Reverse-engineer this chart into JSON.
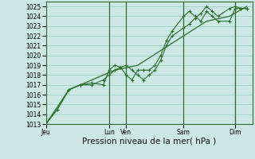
{
  "background_color": "#cce8e4",
  "grid_color": "#99ccbb",
  "line_color": "#2d6e2d",
  "ylim": [
    1013,
    1025.5
  ],
  "ytick_min": 1013,
  "ytick_max": 1025,
  "xlabel": "Pression niveau de la mer( hPa )",
  "xlabel_fontsize": 7.5,
  "tick_fontsize": 5.5,
  "day_labels": [
    "Jeu",
    "Lun",
    "Ven",
    "Sam",
    "Dim"
  ],
  "day_positions": [
    0,
    5.5,
    7.0,
    12.0,
    16.5
  ],
  "vline_positions": [
    5.5,
    7.0,
    12.0,
    16.5
  ],
  "xlim": [
    0,
    18
  ],
  "series1_x": [
    0,
    1,
    2,
    3,
    4,
    5,
    5.5,
    6,
    6.5,
    7,
    7.5,
    8,
    8.5,
    9,
    9.5,
    10,
    10.5,
    11,
    12,
    12.5,
    13,
    13.5,
    14,
    14.5,
    15,
    16,
    16.5,
    17,
    17.5
  ],
  "series1_y": [
    1013,
    1014.5,
    1016.5,
    1017,
    1017,
    1017.5,
    1018,
    1018.5,
    1018.8,
    1019,
    1018.5,
    1018,
    1017.5,
    1018,
    1018.5,
    1019.5,
    1021,
    1022,
    1022.8,
    1023.2,
    1023.8,
    1024.3,
    1025.0,
    1024.5,
    1024.0,
    1024.8,
    1025.0,
    1024.8,
    1024.8
  ],
  "series2_x": [
    0,
    1,
    2,
    3,
    4,
    5,
    5.5,
    6,
    6.5,
    7,
    7.5,
    8,
    8.5,
    9,
    9.5,
    10,
    10.5,
    11,
    12,
    12.5,
    13,
    13.5,
    14,
    14.5,
    15,
    16,
    16.5,
    17,
    17.5
  ],
  "series2_y": [
    1013,
    1014.5,
    1016.5,
    1017,
    1017.2,
    1017,
    1018.5,
    1019,
    1018.8,
    1018,
    1017.5,
    1018.5,
    1018.5,
    1018.5,
    1019,
    1020,
    1021.5,
    1022.5,
    1024,
    1024.5,
    1024,
    1023.5,
    1024.5,
    1024.0,
    1023.5,
    1023.5,
    1024.8,
    1024.8,
    1024.8
  ],
  "series3_x": [
    0,
    2,
    4,
    6,
    8,
    10,
    12,
    14,
    16,
    17.5
  ],
  "series3_y": [
    1013,
    1016.5,
    1017.5,
    1018.5,
    1019.0,
    1020.5,
    1022.0,
    1023.5,
    1024.0,
    1025.0
  ]
}
